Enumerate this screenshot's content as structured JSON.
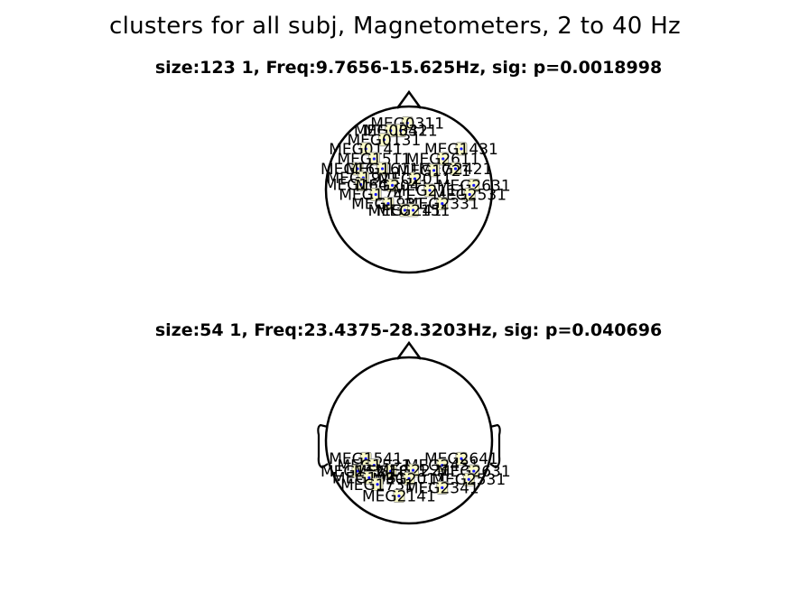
{
  "figure": {
    "title": "clusters for all subj, Magnetometers, 2 to 40 Hz",
    "panels": [
      {
        "title": "size:123    1, Freq:9.7656-15.625Hz, sig: p=0.0018998",
        "show_ears": false,
        "labels": [
          {
            "text": "MEG0311",
            "u": -0.02,
            "v": -0.8
          },
          {
            "text": "MEG0321",
            "u": -0.1,
            "v": -0.71
          },
          {
            "text": "MEG0341",
            "u": -0.22,
            "v": -0.71
          },
          {
            "text": "MEG0131",
            "u": -0.3,
            "v": -0.6
          },
          {
            "text": "MEG0141",
            "u": -0.52,
            "v": -0.49
          },
          {
            "text": "MEG1431",
            "u": 0.63,
            "v": -0.49
          },
          {
            "text": "MEG1511",
            "u": -0.42,
            "v": -0.37
          },
          {
            "text": "MEG2611",
            "u": 0.41,
            "v": -0.37
          },
          {
            "text": "MEG1621",
            "u": -0.62,
            "v": -0.25
          },
          {
            "text": "MEG1611",
            "u": -0.32,
            "v": -0.25
          },
          {
            "text": "MEG2421",
            "u": 0.56,
            "v": -0.25
          },
          {
            "text": "MEG1721",
            "u": 0.3,
            "v": -0.23
          },
          {
            "text": "MEG1911",
            "u": -0.55,
            "v": -0.14
          },
          {
            "text": "MEG2011",
            "u": 0.07,
            "v": -0.13
          },
          {
            "text": "MEG1641",
            "u": -0.58,
            "v": -0.06
          },
          {
            "text": "MEG2041",
            "u": -0.2,
            "v": -0.05
          },
          {
            "text": "MEG2631",
            "u": 0.78,
            "v": -0.05
          },
          {
            "text": "MEG2111",
            "u": 0.25,
            "v": 0.01
          },
          {
            "text": "MEG1741",
            "u": -0.4,
            "v": 0.06
          },
          {
            "text": "MEG2531",
            "u": 0.73,
            "v": 0.06
          },
          {
            "text": "MEG1931",
            "u": -0.25,
            "v": 0.17
          },
          {
            "text": "MEG2331",
            "u": 0.4,
            "v": 0.17
          },
          {
            "text": "MEG2141",
            "u": -0.05,
            "v": 0.25
          },
          {
            "text": "MEG2151",
            "u": 0.05,
            "v": 0.25
          }
        ]
      },
      {
        "title": "size:54    1, Freq:23.4375-28.3203Hz, sig: p=0.040696",
        "show_ears": true,
        "labels": [
          {
            "text": "MEG1541",
            "u": -0.52,
            "v": 0.22
          },
          {
            "text": "MEG2641",
            "u": 0.63,
            "v": 0.22
          },
          {
            "text": "MEG1521",
            "u": -0.42,
            "v": 0.3
          },
          {
            "text": "MEG2431",
            "u": 0.4,
            "v": 0.3
          },
          {
            "text": "MEG1621",
            "u": -0.62,
            "v": 0.37
          },
          {
            "text": "MEG1811",
            "u": -0.22,
            "v": 0.37
          },
          {
            "text": "MEG2221",
            "u": 0.05,
            "v": 0.36
          },
          {
            "text": "MEG2631",
            "u": 0.78,
            "v": 0.37
          },
          {
            "text": "MEG1931",
            "u": -0.48,
            "v": 0.45
          },
          {
            "text": "MEG2011",
            "u": 0.0,
            "v": 0.46
          },
          {
            "text": "MEG2531",
            "u": 0.72,
            "v": 0.47
          },
          {
            "text": "MEG1731",
            "u": -0.38,
            "v": 0.53
          },
          {
            "text": "MEG2341",
            "u": 0.4,
            "v": 0.57
          },
          {
            "text": "MEG2141",
            "u": -0.12,
            "v": 0.67
          }
        ]
      }
    ]
  },
  "colors": {
    "marker_fill": "#fdfdc8",
    "marker_edge": "#8a8a8a",
    "dot": "#1a1aff",
    "outline": "#000000",
    "background": "#ffffff"
  }
}
